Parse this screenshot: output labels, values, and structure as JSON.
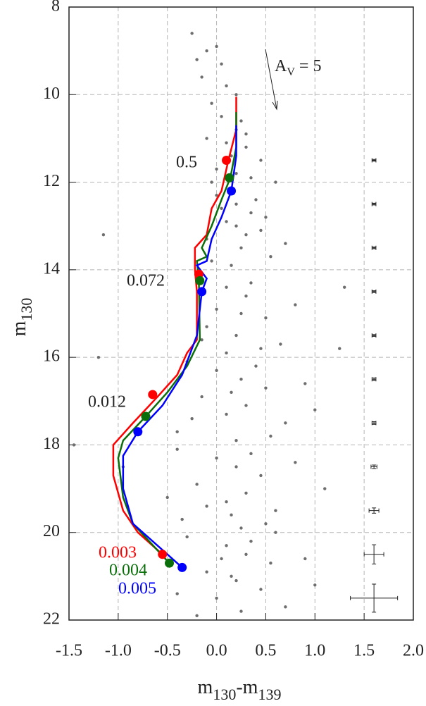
{
  "chart_data": {
    "type": "scatter",
    "x_label": {
      "text": "m",
      "sub1": "130",
      "mid": "-m",
      "sub2": "139"
    },
    "y_label": {
      "text": "m",
      "sub": "130"
    },
    "xlim": [
      -1.5,
      2.0
    ],
    "xticks": [
      {
        "value": -1.5,
        "label": "-1.5"
      },
      {
        "value": -1.0,
        "label": "-1.0"
      },
      {
        "value": -0.5,
        "label": "-0.5"
      },
      {
        "value": 0.0,
        "label": "0.0"
      },
      {
        "value": 0.5,
        "label": "0.5"
      },
      {
        "value": 1.0,
        "label": "1.0"
      },
      {
        "value": 1.5,
        "label": "1.5"
      },
      {
        "value": 2.0,
        "label": "2.0"
      }
    ],
    "ylim": [
      8,
      22
    ],
    "yticks": [
      8,
      10,
      12,
      14,
      16,
      18,
      20,
      22
    ],
    "y_inverted": true,
    "grid": true,
    "point_color": "#6e6e6e",
    "x": [
      -0.25,
      -0.1,
      0.05,
      -0.15,
      0.1,
      -0.05,
      0.2,
      -0.2,
      0.0,
      0.05,
      0.2,
      -0.1,
      0.3,
      0.15,
      0.0,
      0.35,
      0.25,
      0.1,
      0.45,
      -0.05,
      0.2,
      0.6,
      0.3,
      0.0,
      0.2,
      0.35,
      0.1,
      0.45,
      -0.1,
      0.25,
      0.55,
      0.15,
      0.05,
      0.3,
      0.7,
      -0.05,
      0.4,
      -1.15,
      0.2,
      0.5,
      -0.2,
      0.1,
      0.3,
      0.0,
      0.5,
      -0.1,
      0.2,
      0.65,
      0.1,
      0.35,
      0.8,
      -0.15,
      0.45,
      1.3,
      0.25,
      1.25,
      -0.3,
      0.0,
      0.25,
      0.5,
      -0.15,
      0.3,
      0.1,
      0.7,
      -0.4,
      0.2,
      0.4,
      0.9,
      -0.25,
      0.55,
      1.0,
      -1.2,
      0.15,
      -1.45,
      -0.4,
      0.0,
      0.2,
      0.45,
      -0.2,
      0.3,
      0.1,
      0.6,
      -0.35,
      0.25,
      0.8,
      -0.1,
      0.35,
      0.15,
      1.1,
      -0.5,
      0.5,
      -0.95,
      -0.3,
      0.1,
      0.3,
      0.55,
      -0.1,
      0.2,
      0.45,
      0.0,
      0.7,
      -0.2,
      0.35,
      0.9,
      0.15,
      -0.4,
      1.0,
      0.25,
      0.6,
      0.05
    ],
    "y": [
      8.6,
      9.0,
      9.3,
      9.6,
      9.8,
      10.2,
      10.0,
      9.2,
      8.9,
      10.5,
      10.8,
      11.0,
      11.2,
      11.4,
      11.7,
      11.9,
      10.6,
      11.1,
      11.5,
      12.0,
      11.8,
      12.0,
      10.9,
      12.3,
      12.5,
      12.7,
      12.9,
      13.1,
      13.3,
      13.5,
      13.7,
      13.9,
      12.6,
      13.2,
      13.4,
      13.8,
      12.4,
      13.2,
      13.0,
      12.8,
      14.2,
      14.4,
      14.6,
      14.9,
      15.1,
      15.3,
      15.5,
      15.7,
      15.9,
      14.3,
      14.8,
      15.6,
      15.8,
      14.4,
      15.0,
      15.8,
      16.1,
      16.3,
      16.5,
      16.7,
      16.9,
      17.1,
      17.3,
      17.5,
      17.7,
      17.9,
      16.2,
      16.6,
      17.4,
      17.8,
      17.2,
      16.0,
      16.8,
      18.0,
      18.1,
      18.3,
      18.5,
      18.7,
      18.9,
      19.1,
      19.3,
      19.5,
      19.7,
      19.9,
      18.4,
      19.4,
      18.2,
      19.6,
      19.0,
      19.2,
      19.8,
      18.5,
      20.1,
      20.3,
      20.5,
      20.7,
      20.9,
      21.1,
      21.3,
      21.5,
      21.7,
      21.9,
      20.2,
      20.6,
      21.0,
      21.4,
      21.2,
      21.8,
      20.0,
      20.6
    ],
    "isochrones": [
      {
        "color": "#ff0000",
        "x": [
          0.2,
          0.2,
          0.12,
          0.05,
          -0.05,
          -0.1,
          -0.22,
          -0.22,
          -0.2,
          -0.2,
          -0.3,
          -0.4,
          -0.6,
          -0.85,
          -1.05,
          -1.05,
          -0.95,
          -0.8,
          -0.55
        ],
        "y": [
          10.05,
          10.8,
          11.5,
          12.2,
          12.6,
          13.2,
          13.5,
          14.0,
          14.5,
          15.6,
          15.9,
          16.4,
          16.9,
          17.5,
          18.0,
          18.7,
          19.5,
          20.0,
          20.5
        ],
        "markers": {
          "x": [
            0.1,
            -0.18,
            -0.65,
            -0.55
          ],
          "y": [
            11.5,
            14.1,
            16.85,
            20.5
          ]
        }
      },
      {
        "color": "#0a6e0a",
        "x": [
          0.2,
          0.2,
          0.14,
          0.05,
          -0.05,
          -0.15,
          -0.1,
          -0.2,
          -0.18,
          -0.17,
          -0.3,
          -0.5,
          -0.72,
          -0.95,
          -1.0,
          -0.95,
          -0.85,
          -0.48
        ],
        "y": [
          10.4,
          11.2,
          11.9,
          12.4,
          13.0,
          13.5,
          13.7,
          13.8,
          14.25,
          15.6,
          16.2,
          16.8,
          17.35,
          17.9,
          18.3,
          19.2,
          19.8,
          20.7
        ],
        "markers": {
          "x": [
            0.13,
            -0.17,
            -0.72,
            -0.48
          ],
          "y": [
            11.9,
            14.25,
            17.35,
            20.7
          ]
        }
      },
      {
        "color": "#0000ff",
        "x": [
          0.2,
          0.2,
          0.15,
          0.05,
          -0.05,
          -0.1,
          -0.2,
          -0.1,
          -0.15,
          -0.2,
          -0.35,
          -0.55,
          -0.8,
          -0.95,
          -0.95,
          -0.85,
          -0.55,
          -0.35
        ],
        "y": [
          10.7,
          11.4,
          12.2,
          12.8,
          13.3,
          13.8,
          13.9,
          14.2,
          14.5,
          15.5,
          16.4,
          17.1,
          17.7,
          18.25,
          19.0,
          19.8,
          20.4,
          20.8
        ],
        "markers": {
          "x": [
            0.15,
            -0.15,
            -0.8,
            -0.35
          ],
          "y": [
            12.2,
            14.5,
            17.7,
            20.8
          ]
        }
      }
    ],
    "error_bars": {
      "x": 1.6,
      "y": [
        11.5,
        12.5,
        13.5,
        14.5,
        15.5,
        16.5,
        17.5,
        18.5,
        19.5,
        20.5,
        21.5
      ],
      "xerr": [
        0.02,
        0.02,
        0.02,
        0.02,
        0.02,
        0.02,
        0.02,
        0.03,
        0.05,
        0.1,
        0.24
      ],
      "yerr": [
        0.02,
        0.02,
        0.02,
        0.02,
        0.02,
        0.03,
        0.03,
        0.04,
        0.06,
        0.22,
        0.32
      ]
    },
    "annotations": [
      {
        "text": "0.5",
        "color": "#222222"
      },
      {
        "text": "0.072",
        "color": "#222222"
      },
      {
        "text": "0.012",
        "color": "#222222"
      },
      {
        "text": "0.003",
        "color": "#ff0000"
      },
      {
        "text": "0.004",
        "color": "#0a6e0a"
      },
      {
        "text": "0.005",
        "color": "#0000ff"
      }
    ],
    "reddening": {
      "text": "A",
      "sub": "V",
      "rest": " = 5"
    }
  }
}
